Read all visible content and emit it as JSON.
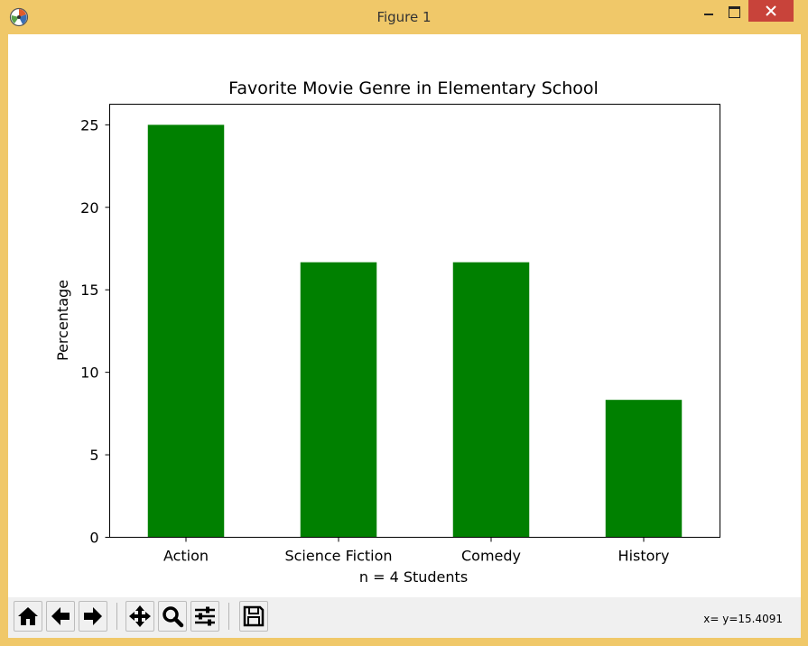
{
  "window": {
    "title": "Figure 1",
    "accent_color": "#f0c869",
    "close_color": "#c8433a"
  },
  "toolbar": {
    "buttons": [
      {
        "name": "home",
        "icon": "home-icon"
      },
      {
        "name": "back",
        "icon": "arrow-left-icon"
      },
      {
        "name": "forward",
        "icon": "arrow-right-icon"
      },
      {
        "name": "pan",
        "icon": "move-icon"
      },
      {
        "name": "zoom",
        "icon": "magnifier-icon"
      },
      {
        "name": "configure-subplots",
        "icon": "sliders-icon"
      },
      {
        "name": "save",
        "icon": "floppy-disk-icon"
      }
    ],
    "coordinates": "x= y=15.4091"
  },
  "chart_data": {
    "type": "bar",
    "title": "Favorite Movie Genre in Elementary School",
    "xlabel": "n = 4 Students",
    "ylabel": "Percentage",
    "categories": [
      "Action",
      "Science Fiction",
      "Comedy",
      "History"
    ],
    "values": [
      25.0,
      16.67,
      16.67,
      8.33
    ],
    "ylim": [
      0,
      26.25
    ],
    "yticks": [
      "0",
      "5",
      "10",
      "15",
      "20",
      "25"
    ],
    "bar_color": "#008000",
    "grid": false,
    "legend": "none"
  }
}
